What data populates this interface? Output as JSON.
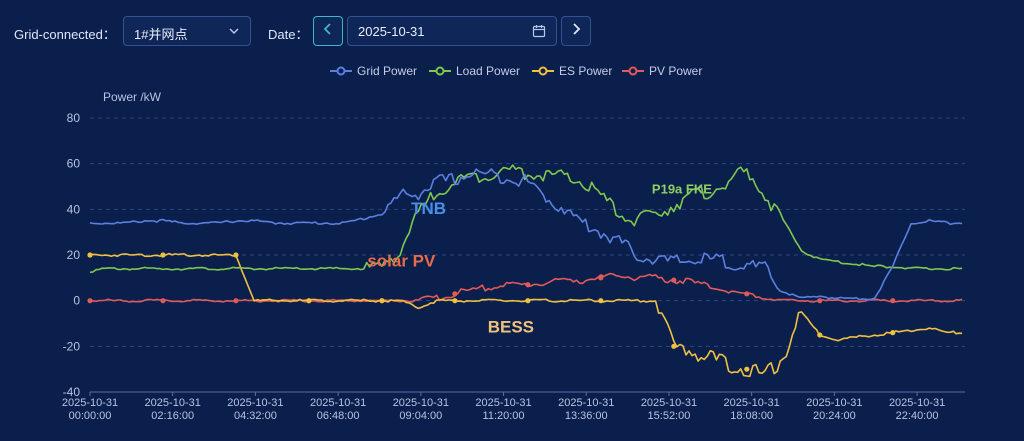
{
  "toolbar": {
    "grid_label": "Grid-connected：",
    "grid_value": "1#并网点",
    "date_label": "Date：",
    "date_value": "2025-10-31"
  },
  "chart_data": {
    "type": "line",
    "ylabel": "Power /kW",
    "ylim": [
      -40,
      80
    ],
    "yticks": [
      80,
      60,
      40,
      20,
      0,
      -20,
      -40
    ],
    "grid": "horizontal dashed",
    "legend_position": "top-center",
    "x_tick_labels": [
      [
        "2025-10-31",
        "00:00:00"
      ],
      [
        "2025-10-31",
        "02:16:00"
      ],
      [
        "2025-10-31",
        "04:32:00"
      ],
      [
        "2025-10-31",
        "06:48:00"
      ],
      [
        "2025-10-31",
        "09:04:00"
      ],
      [
        "2025-10-31",
        "11:20:00"
      ],
      [
        "2025-10-31",
        "13:36:00"
      ],
      [
        "2025-10-31",
        "15:52:00"
      ],
      [
        "2025-10-31",
        "18:08:00"
      ],
      [
        "2025-10-31",
        "20:24:00"
      ],
      [
        "2025-10-31",
        "22:40:00"
      ]
    ],
    "x_hours": [
      0,
      0.5,
      1,
      1.5,
      2,
      2.5,
      3,
      3.5,
      4,
      4.5,
      5,
      5.5,
      6,
      6.5,
      7,
      7.5,
      8,
      8.5,
      9,
      9.5,
      10,
      10.5,
      11,
      11.5,
      12,
      12.5,
      13,
      13.5,
      14,
      14.5,
      15,
      15.5,
      16,
      16.5,
      17,
      17.5,
      18,
      18.5,
      19,
      19.5,
      20,
      20.5,
      21,
      21.5,
      22,
      22.5,
      23,
      23.5
    ],
    "series": [
      {
        "name": "Grid Power",
        "color": "#5b7fe0",
        "values": [
          34,
          34,
          34,
          35,
          35,
          34,
          34,
          34,
          35,
          35,
          34,
          34,
          34,
          34,
          34,
          36,
          38,
          46,
          47,
          52,
          53,
          56,
          55,
          54,
          52,
          45,
          40,
          34,
          30,
          26,
          20,
          18,
          17,
          18,
          18,
          17,
          15,
          14,
          4,
          1,
          2,
          1,
          1,
          1,
          15,
          34,
          35,
          34
        ]
      },
      {
        "name": "Load Power",
        "color": "#7fc84d",
        "values": [
          13,
          14,
          14,
          14,
          14,
          14,
          14,
          14,
          14,
          14,
          14,
          14,
          14,
          14,
          14,
          14,
          15,
          22,
          38,
          48,
          52,
          54,
          56,
          57,
          56,
          55,
          54,
          52,
          46,
          38,
          35,
          38,
          42,
          46,
          48,
          52,
          57,
          46,
          35,
          22,
          18,
          17,
          16,
          15,
          15,
          14,
          14,
          14
        ]
      },
      {
        "name": "ES Power",
        "color": "#f0c040",
        "values": [
          20,
          20,
          20,
          20,
          20,
          20,
          20,
          20,
          20,
          0,
          0,
          0,
          0,
          0,
          0,
          0,
          0,
          0,
          -3,
          0,
          0,
          0,
          0,
          0,
          0,
          0,
          0,
          0,
          0,
          0,
          0,
          0,
          -20,
          -22,
          -25,
          -28,
          -30,
          -33,
          -25,
          -5,
          -15,
          -17,
          -16,
          -15,
          -14,
          -13,
          -12,
          -14
        ]
      },
      {
        "name": "PV Power",
        "color": "#e05a5a",
        "values": [
          0,
          0,
          0,
          0,
          0,
          0,
          0,
          0,
          0,
          0,
          0,
          0,
          0,
          0,
          0,
          0,
          0,
          0,
          0,
          1,
          3,
          5,
          6,
          7,
          7,
          8,
          9,
          9,
          10,
          11,
          10,
          10,
          9,
          8,
          6,
          4,
          3,
          1,
          0,
          0,
          0,
          0,
          0,
          0,
          0,
          0,
          0,
          0
        ]
      }
    ],
    "annotations": [
      {
        "text": "TNB",
        "color": "#4a8fe8",
        "x_hours": 8.8,
        "y": 38
      },
      {
        "text": "solar PV",
        "color": "#e86a4a",
        "x_hours": 7.6,
        "y": 15
      },
      {
        "text": "BESS",
        "color": "#f2c27a",
        "x_hours": 10.9,
        "y": -14
      },
      {
        "text": "P19a FKE",
        "color": "#8fd060",
        "x_hours": 15.4,
        "y": 47
      }
    ]
  },
  "icons": {
    "select_chevron": "chevron-down-icon",
    "prev": "chevron-left-icon",
    "next": "chevron-right-icon",
    "calendar": "calendar-icon"
  }
}
